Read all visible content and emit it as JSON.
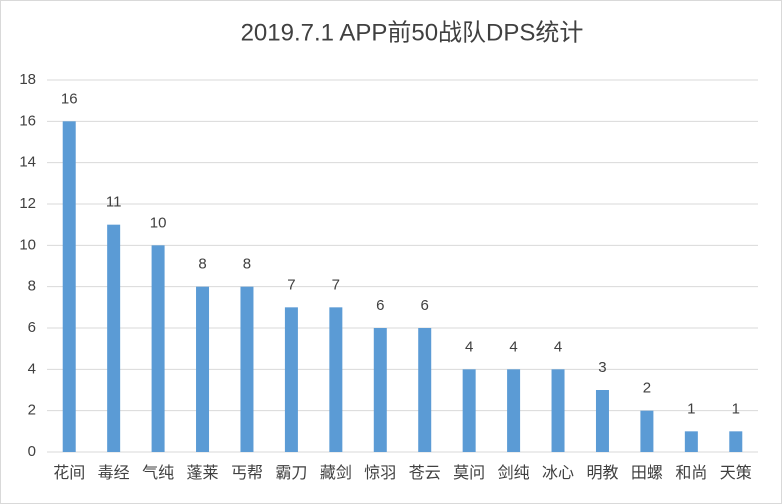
{
  "chart_data": {
    "type": "bar",
    "title": "2019.7.1 APP前50战队DPS统计",
    "categories": [
      "花间",
      "毒经",
      "气纯",
      "蓬莱",
      "丐帮",
      "霸刀",
      "藏剑",
      "惊羽",
      "苍云",
      "莫问",
      "剑纯",
      "冰心",
      "明教",
      "田螺",
      "和尚",
      "天策"
    ],
    "values": [
      16,
      11,
      10,
      8,
      8,
      7,
      7,
      6,
      6,
      4,
      4,
      4,
      3,
      2,
      1,
      1
    ],
    "color": "#5b9bd5",
    "ylim": [
      0,
      18
    ],
    "yticks": [
      0,
      2,
      4,
      6,
      8,
      10,
      12,
      14,
      16,
      18
    ],
    "grid": true
  }
}
